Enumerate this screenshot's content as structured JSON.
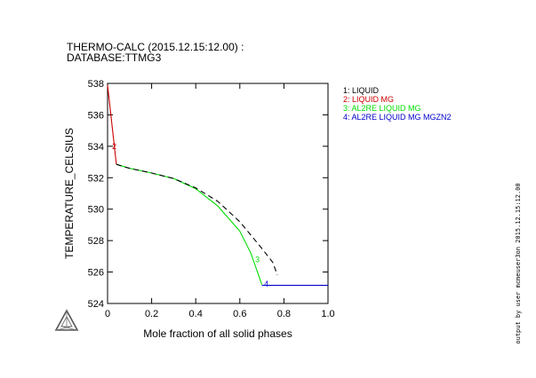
{
  "chart_data": {
    "type": "line",
    "title": "THERMO-CALC (2015.12.15:12.00) :",
    "subtitle": "DATABASE:TTMG3",
    "xlabel": "Mole fraction of all solid phases",
    "ylabel": "TEMPERATURE_CELSIUS",
    "xlim": [
      0,
      1.0
    ],
    "ylim": [
      524,
      538
    ],
    "x_ticks": [
      0,
      0.2,
      0.4,
      0.6,
      0.8,
      1.0
    ],
    "x_tick_labels": [
      "0",
      "0.2",
      "0.4",
      "0.6",
      "0.8",
      "1.0"
    ],
    "y_ticks": [
      524,
      526,
      528,
      530,
      532,
      534,
      536,
      538
    ],
    "y_tick_labels": [
      "524",
      "526",
      "528",
      "530",
      "532",
      "534",
      "536",
      "538"
    ],
    "grid": false,
    "legend_position": "right",
    "series": [
      {
        "name": "1: LIQUID",
        "label": "",
        "color": "#000000",
        "style": "solid",
        "points": [
          [
            0.0,
            538.0
          ],
          [
            0.0,
            537.9
          ]
        ]
      },
      {
        "name": "2: LIQUID MG",
        "label": "2",
        "label_at": [
          0.02,
          534.0
        ],
        "color": "#cc0000",
        "style": "solid",
        "points": [
          [
            0.0,
            537.9
          ],
          [
            0.04,
            532.85
          ]
        ]
      },
      {
        "name": "3: AL2RE LIQUID MG",
        "label": "3",
        "label_at": [
          0.67,
          526.8
        ],
        "color": "#00dd00",
        "style": "solid",
        "points": [
          [
            0.04,
            532.85
          ],
          [
            0.1,
            532.6
          ],
          [
            0.2,
            532.3
          ],
          [
            0.3,
            531.95
          ],
          [
            0.4,
            531.3
          ],
          [
            0.5,
            530.2
          ],
          [
            0.6,
            528.6
          ],
          [
            0.65,
            527.2
          ],
          [
            0.7,
            525.2
          ]
        ]
      },
      {
        "name": "4: AL2RE LIQUID MG MGZN2",
        "label": "4",
        "label_at": [
          0.71,
          525.25
        ],
        "color": "#0000cc",
        "style": "solid",
        "points": [
          [
            0.7,
            525.15
          ],
          [
            1.0,
            525.15
          ]
        ]
      },
      {
        "name": "",
        "label": "",
        "color": "#000000",
        "style": "dashed",
        "points": [
          [
            0.04,
            532.85
          ],
          [
            0.1,
            532.6
          ],
          [
            0.2,
            532.3
          ],
          [
            0.3,
            531.95
          ],
          [
            0.4,
            531.35
          ],
          [
            0.5,
            530.5
          ],
          [
            0.6,
            529.2
          ],
          [
            0.7,
            527.5
          ],
          [
            0.75,
            526.6
          ],
          [
            0.77,
            525.8
          ]
        ]
      }
    ]
  },
  "side_note": "output by user mcmeuser3on 2015.12.15:12.00"
}
